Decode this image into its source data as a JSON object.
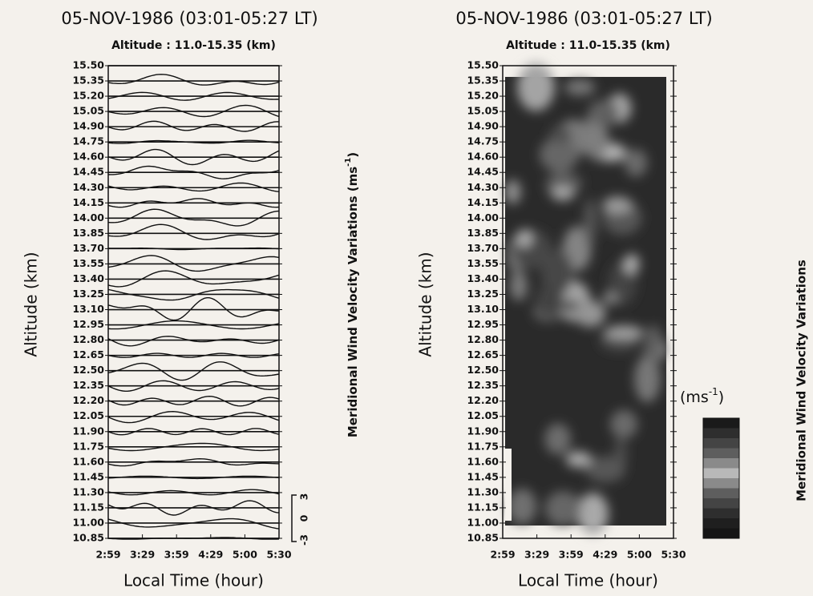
{
  "panels": [
    {
      "title": "05-NOV-1986  (03:01-05:27  LT)",
      "subtitle": "Altitude : 11.0-15.35 (km)",
      "y_label": "Altitude (km)",
      "x_label": "Local Time (hour)",
      "y_ticks": [
        "15.50",
        "15.35",
        "15.20",
        "15.05",
        "14.90",
        "14.75",
        "14.60",
        "14.45",
        "14.30",
        "14.15",
        "14.00",
        "13.85",
        "13.70",
        "13.55",
        "13.40",
        "13.25",
        "13.10",
        "12.95",
        "12.80",
        "12.65",
        "12.50",
        "12.35",
        "12.20",
        "12.05",
        "11.90",
        "11.75",
        "11.60",
        "11.45",
        "11.30",
        "11.15",
        "11.00",
        "10.85"
      ],
      "x_ticks": [
        "2:59",
        "3:29",
        "3:59",
        "4:29",
        "5:00",
        "5:30"
      ],
      "side_label": "Meridional Wind Velocity Variations (ms",
      "side_label_exp": "-1",
      "side_label_end": ")",
      "scale_labels": [
        "3",
        "0",
        "-3"
      ]
    },
    {
      "title": "05-NOV-1986  (03:01-05:27  LT)",
      "subtitle": "Altitude : 11.0-15.35 (km)",
      "y_label": "Altitude (km)",
      "x_label": "Local Time (hour)",
      "y_ticks": [
        "15.50",
        "15.35",
        "15.20",
        "15.05",
        "14.90",
        "14.75",
        "14.60",
        "14.45",
        "14.30",
        "14.15",
        "14.00",
        "13.85",
        "13.70",
        "13.55",
        "13.40",
        "13.25",
        "13.10",
        "12.95",
        "12.80",
        "12.65",
        "12.50",
        "12.35",
        "12.20",
        "12.05",
        "11.90",
        "11.75",
        "11.60",
        "11.45",
        "11.30",
        "11.15",
        "11.00",
        "10.85"
      ],
      "x_ticks": [
        "2:59",
        "3:29",
        "3:59",
        "4:29",
        "5:00",
        "5:30"
      ],
      "side_label": "Meridional Wind Velocity Variations",
      "unit": "(ms",
      "unit_exp": "-1",
      "unit_end": ")"
    }
  ]
}
